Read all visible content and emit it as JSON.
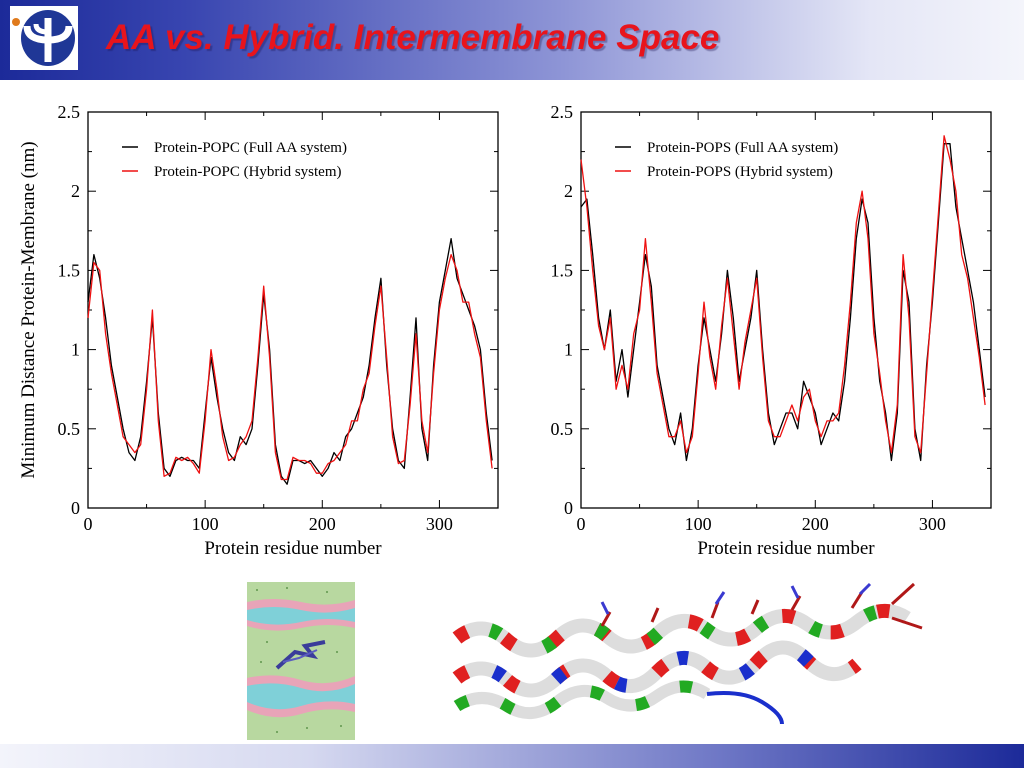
{
  "slide": {
    "title": "AA vs. Hybrid.  Intermembrane Space"
  },
  "colors": {
    "aa": "#000000",
    "hybrid": "#ee1111",
    "title": "#e8141c"
  },
  "images": {
    "left": "membrane-simulation-snapshot",
    "right": "protein-helix-ribbon"
  },
  "chart_data": [
    {
      "type": "line",
      "title": "",
      "xlabel": "Protein residue number",
      "ylabel": "Minimum Distance Protein-Membrane (nm)",
      "xlim": [
        0,
        350
      ],
      "ylim": [
        0,
        2.5
      ],
      "xticks": [
        "0",
        "100",
        "200",
        "300"
      ],
      "yticks": [
        "0",
        "0.5",
        "1",
        "1.5",
        "2",
        "2.5"
      ],
      "legend_position": "top-left",
      "x": [
        0,
        5,
        10,
        15,
        20,
        25,
        30,
        35,
        40,
        45,
        50,
        55,
        60,
        65,
        70,
        75,
        80,
        85,
        90,
        95,
        100,
        105,
        110,
        115,
        120,
        125,
        130,
        135,
        140,
        145,
        150,
        155,
        160,
        165,
        170,
        175,
        180,
        185,
        190,
        195,
        200,
        205,
        210,
        215,
        220,
        225,
        230,
        235,
        240,
        245,
        250,
        255,
        260,
        265,
        270,
        275,
        280,
        285,
        290,
        295,
        300,
        305,
        310,
        315,
        320,
        325,
        330,
        335,
        340,
        345
      ],
      "series": [
        {
          "name": "Protein-POPC (Full AA system)",
          "color": "#000000",
          "values": [
            1.3,
            1.6,
            1.45,
            1.2,
            0.9,
            0.7,
            0.5,
            0.35,
            0.3,
            0.45,
            0.8,
            1.2,
            0.6,
            0.25,
            0.2,
            0.3,
            0.32,
            0.3,
            0.3,
            0.25,
            0.6,
            0.95,
            0.7,
            0.5,
            0.35,
            0.3,
            0.45,
            0.4,
            0.5,
            0.9,
            1.35,
            1.0,
            0.4,
            0.2,
            0.15,
            0.3,
            0.3,
            0.28,
            0.3,
            0.25,
            0.2,
            0.25,
            0.35,
            0.3,
            0.45,
            0.5,
            0.6,
            0.7,
            0.9,
            1.2,
            1.45,
            0.9,
            0.5,
            0.3,
            0.25,
            0.7,
            1.2,
            0.5,
            0.3,
            0.9,
            1.3,
            1.5,
            1.7,
            1.45,
            1.35,
            1.25,
            1.15,
            1.0,
            0.6,
            0.3
          ]
        },
        {
          "name": "Protein-POPC (Hybrid system)",
          "color": "#ee1111",
          "values": [
            1.2,
            1.55,
            1.5,
            1.1,
            0.85,
            0.65,
            0.45,
            0.4,
            0.35,
            0.4,
            0.75,
            1.25,
            0.55,
            0.2,
            0.22,
            0.32,
            0.3,
            0.32,
            0.28,
            0.22,
            0.55,
            1.0,
            0.75,
            0.45,
            0.3,
            0.32,
            0.4,
            0.45,
            0.55,
            0.95,
            1.4,
            0.95,
            0.35,
            0.18,
            0.18,
            0.32,
            0.3,
            0.3,
            0.28,
            0.22,
            0.22,
            0.28,
            0.3,
            0.35,
            0.4,
            0.55,
            0.55,
            0.75,
            0.85,
            1.15,
            1.4,
            0.95,
            0.45,
            0.28,
            0.3,
            0.65,
            1.1,
            0.55,
            0.35,
            0.85,
            1.25,
            1.45,
            1.6,
            1.5,
            1.3,
            1.3,
            1.1,
            0.95,
            0.55,
            0.25
          ]
        }
      ]
    },
    {
      "type": "line",
      "title": "",
      "xlabel": "Protein residue number",
      "ylabel": "",
      "xlim": [
        0,
        350
      ],
      "ylim": [
        0,
        2.5
      ],
      "xticks": [
        "0",
        "100",
        "200",
        "300"
      ],
      "yticks": [
        "0",
        "0.5",
        "1",
        "1.5",
        "2",
        "2.5"
      ],
      "legend_position": "top-left",
      "x": [
        0,
        5,
        10,
        15,
        20,
        25,
        30,
        35,
        40,
        45,
        50,
        55,
        60,
        65,
        70,
        75,
        80,
        85,
        90,
        95,
        100,
        105,
        110,
        115,
        120,
        125,
        130,
        135,
        140,
        145,
        150,
        155,
        160,
        165,
        170,
        175,
        180,
        185,
        190,
        195,
        200,
        205,
        210,
        215,
        220,
        225,
        230,
        235,
        240,
        245,
        250,
        255,
        260,
        265,
        270,
        275,
        280,
        285,
        290,
        295,
        300,
        305,
        310,
        315,
        320,
        325,
        330,
        335,
        340,
        345
      ],
      "series": [
        {
          "name": "Protein-POPS (Full AA system)",
          "color": "#000000",
          "values": [
            1.9,
            1.95,
            1.6,
            1.2,
            1.0,
            1.25,
            0.8,
            1.0,
            0.7,
            1.0,
            1.3,
            1.6,
            1.4,
            0.9,
            0.7,
            0.5,
            0.4,
            0.6,
            0.3,
            0.5,
            0.9,
            1.2,
            1.0,
            0.8,
            1.1,
            1.5,
            1.2,
            0.8,
            1.0,
            1.2,
            1.5,
            1.0,
            0.6,
            0.4,
            0.5,
            0.6,
            0.6,
            0.5,
            0.8,
            0.7,
            0.6,
            0.4,
            0.5,
            0.6,
            0.55,
            0.8,
            1.2,
            1.7,
            1.95,
            1.8,
            1.2,
            0.8,
            0.6,
            0.3,
            0.6,
            1.5,
            1.3,
            0.5,
            0.3,
            0.9,
            1.3,
            1.8,
            2.3,
            2.3,
            1.9,
            1.7,
            1.5,
            1.3,
            1.0,
            0.7
          ]
        },
        {
          "name": "Protein-POPS (Hybrid system)",
          "color": "#ee1111",
          "values": [
            2.2,
            1.9,
            1.5,
            1.15,
            1.0,
            1.2,
            0.75,
            0.9,
            0.75,
            1.1,
            1.25,
            1.7,
            1.3,
            0.85,
            0.65,
            0.45,
            0.45,
            0.55,
            0.35,
            0.45,
            0.85,
            1.3,
            0.95,
            0.75,
            1.15,
            1.45,
            1.1,
            0.75,
            1.05,
            1.25,
            1.45,
            0.95,
            0.55,
            0.45,
            0.45,
            0.55,
            0.65,
            0.55,
            0.7,
            0.75,
            0.55,
            0.45,
            0.55,
            0.55,
            0.6,
            0.9,
            1.3,
            1.8,
            2.0,
            1.7,
            1.1,
            0.85,
            0.55,
            0.35,
            0.65,
            1.6,
            1.2,
            0.45,
            0.35,
            0.85,
            1.35,
            1.85,
            2.35,
            2.2,
            2.0,
            1.6,
            1.45,
            1.2,
            0.95,
            0.65
          ]
        }
      ]
    }
  ]
}
